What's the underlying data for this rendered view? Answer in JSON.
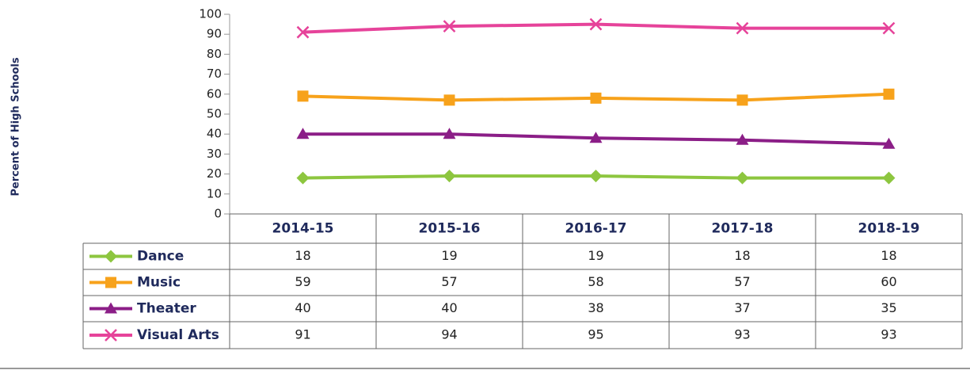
{
  "chart_data": {
    "type": "line",
    "y_label": "Percent of High Schools",
    "categories": [
      "2014-15",
      "2015-16",
      "2016-17",
      "2017-18",
      "2018-19"
    ],
    "series": [
      {
        "name": "Dance",
        "color": "#8dc63f",
        "marker": "diamond",
        "values": [
          18,
          19,
          19,
          18,
          18
        ]
      },
      {
        "name": "Music",
        "color": "#f7a21b",
        "marker": "square",
        "values": [
          59,
          57,
          58,
          57,
          60
        ]
      },
      {
        "name": "Theater",
        "color": "#8b1e87",
        "marker": "triangle",
        "values": [
          40,
          40,
          38,
          37,
          35
        ]
      },
      {
        "name": "Visual Arts",
        "color": "#e6439a",
        "marker": "x",
        "values": [
          91,
          94,
          95,
          93,
          93
        ]
      }
    ],
    "ylim": [
      0,
      100
    ],
    "yticks": [
      0,
      10,
      20,
      30,
      40,
      50,
      60,
      70,
      80,
      90,
      100
    ]
  }
}
